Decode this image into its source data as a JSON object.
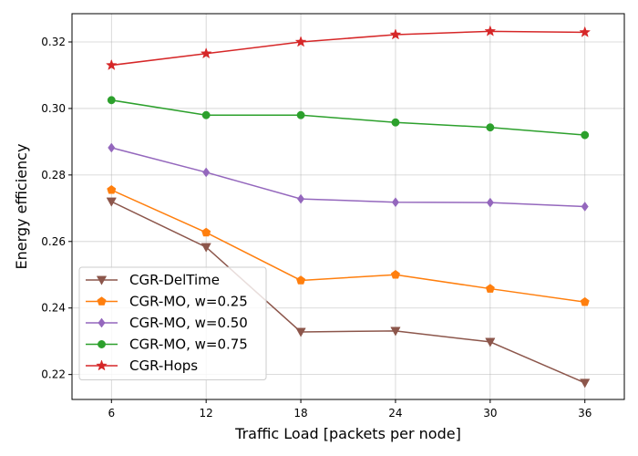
{
  "chart_data": {
    "type": "line",
    "title": "",
    "xlabel": "Traffic Load [packets per node]",
    "ylabel": "Energy efficiency",
    "x": [
      6,
      12,
      18,
      24,
      30,
      36
    ],
    "x_ticks": [
      6,
      12,
      18,
      24,
      30,
      36
    ],
    "y_ticks": [
      0.22,
      0.24,
      0.26,
      0.28,
      0.3,
      0.32
    ],
    "y_tick_labels": [
      "0.22",
      "0.24",
      "0.26",
      "0.28",
      "0.30",
      "0.32"
    ],
    "xlim": [
      3.5,
      38.5
    ],
    "ylim": [
      0.2125,
      0.3285
    ],
    "grid": true,
    "legend_position": "lower-left",
    "series": [
      {
        "name": "CGR-DelTime",
        "color": "#8c564b",
        "marker": "triangle-down",
        "values": [
          0.272,
          0.2583,
          0.2328,
          0.2331,
          0.2298,
          0.2175
        ]
      },
      {
        "name": "CGR-MO, w=0.25",
        "color": "#ff7f0e",
        "marker": "pentagon",
        "values": [
          0.2755,
          0.2627,
          0.2483,
          0.25,
          0.2458,
          0.2418
        ]
      },
      {
        "name": "CGR-MO, w=0.50",
        "color": "#9467bd",
        "marker": "diamond",
        "values": [
          0.2882,
          0.2808,
          0.2728,
          0.2718,
          0.2717,
          0.2705
        ]
      },
      {
        "name": "CGR-MO, w=0.75",
        "color": "#2ca02c",
        "marker": "circle",
        "values": [
          0.3025,
          0.298,
          0.298,
          0.2958,
          0.2943,
          0.292
        ]
      },
      {
        "name": "CGR-Hops",
        "color": "#d62728",
        "marker": "star",
        "values": [
          0.313,
          0.3165,
          0.32,
          0.3222,
          0.3232,
          0.3229
        ]
      }
    ]
  }
}
